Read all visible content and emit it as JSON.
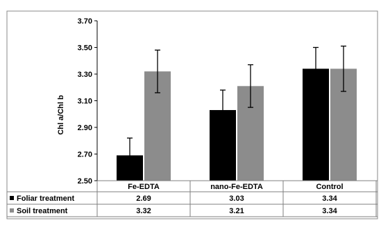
{
  "chart_data": {
    "type": "bar",
    "ylabel": "Chl a/Chl b",
    "ylim": [
      2.5,
      3.7
    ],
    "yticks": [
      "2.50",
      "2.70",
      "2.90",
      "3.10",
      "3.30",
      "3.50",
      "3.70"
    ],
    "grid": false,
    "legend_placement": "data-table-left",
    "categories": [
      "Fe-EDTA",
      "nano-Fe-EDTA",
      "Control"
    ],
    "series": [
      {
        "name": "Foliar treatment",
        "color": "#000000",
        "values": [
          2.69,
          3.03,
          3.34
        ],
        "labels": [
          "2.69",
          "3.03",
          "3.34"
        ],
        "error": [
          0.13,
          0.15,
          0.16
        ]
      },
      {
        "name": "Soil treatment",
        "color": "#8c8c8c",
        "values": [
          3.32,
          3.21,
          3.34
        ],
        "labels": [
          "3.32",
          "3.21",
          "3.34"
        ],
        "error": [
          0.16,
          0.16,
          0.17
        ]
      }
    ]
  }
}
